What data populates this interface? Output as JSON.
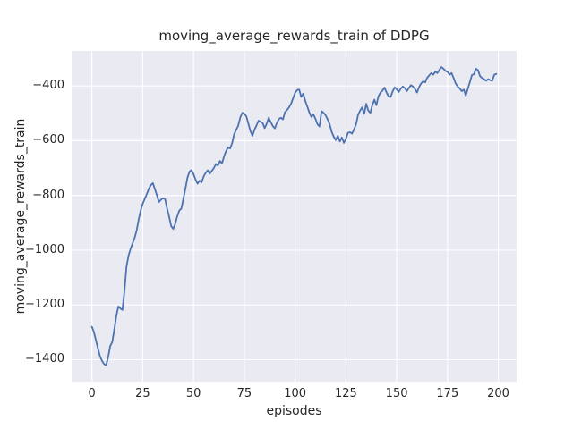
{
  "figure": {
    "title": "moving_average_rewards_train of DDPG",
    "xlabel": "episodes",
    "ylabel": "moving_average_rewards_train"
  },
  "chart_data": {
    "type": "line",
    "title": "moving_average_rewards_train of DDPG",
    "xlabel": "episodes",
    "ylabel": "moving_average_rewards_train",
    "xlim": [
      -10,
      209
    ],
    "ylim": [
      -1480,
      -272
    ],
    "xticks": [
      0,
      25,
      50,
      75,
      100,
      125,
      150,
      175,
      200
    ],
    "xtick_labels": [
      "0",
      "25",
      "50",
      "75",
      "100",
      "125",
      "150",
      "175",
      "200"
    ],
    "yticks": [
      -400,
      -600,
      -800,
      -1000,
      -1200,
      -1400
    ],
    "ytick_labels": [
      "−400",
      "−600",
      "−800",
      "−1000",
      "−1200",
      "−1400"
    ],
    "grid": true,
    "legend": false,
    "styles": {
      "figure_bg": "#ffffff",
      "plot_bg": "#eaeaf2",
      "grid_color": "#ffffff",
      "line_color": "#4c72b0",
      "text_color": "#262626"
    },
    "series": [
      {
        "name": "moving_average_rewards_train",
        "x": [
          0,
          1,
          2,
          3,
          4,
          5,
          6,
          7,
          8,
          9,
          10,
          11,
          12,
          13,
          14,
          15,
          16,
          17,
          18,
          19,
          20,
          21,
          22,
          23,
          24,
          25,
          26,
          27,
          28,
          29,
          30,
          31,
          32,
          33,
          34,
          35,
          36,
          37,
          38,
          39,
          40,
          41,
          42,
          43,
          44,
          45,
          46,
          47,
          48,
          49,
          50,
          51,
          52,
          53,
          54,
          55,
          56,
          57,
          58,
          59,
          60,
          61,
          62,
          63,
          64,
          65,
          66,
          67,
          68,
          69,
          70,
          71,
          72,
          73,
          74,
          75,
          76,
          77,
          78,
          79,
          80,
          81,
          82,
          83,
          84,
          85,
          86,
          87,
          88,
          89,
          90,
          91,
          92,
          93,
          94,
          95,
          96,
          97,
          98,
          99,
          100,
          101,
          102,
          103,
          104,
          105,
          106,
          107,
          108,
          109,
          110,
          111,
          112,
          113,
          114,
          115,
          116,
          117,
          118,
          119,
          120,
          121,
          122,
          123,
          124,
          125,
          126,
          127,
          128,
          129,
          130,
          131,
          132,
          133,
          134,
          135,
          136,
          137,
          138,
          139,
          140,
          141,
          142,
          143,
          144,
          145,
          146,
          147,
          148,
          149,
          150,
          151,
          152,
          153,
          154,
          155,
          156,
          157,
          158,
          159,
          160,
          161,
          162,
          163,
          164,
          165,
          166,
          167,
          168,
          169,
          170,
          171,
          172,
          173,
          174,
          175,
          176,
          177,
          178,
          179,
          180,
          181,
          182,
          183,
          184,
          185,
          186,
          187,
          188,
          189,
          190,
          191,
          192,
          193,
          194,
          195,
          196,
          197,
          198,
          199
        ],
        "y": [
          -1280,
          -1300,
          -1330,
          -1360,
          -1388,
          -1405,
          -1416,
          -1420,
          -1390,
          -1350,
          -1335,
          -1290,
          -1240,
          -1205,
          -1213,
          -1218,
          -1150,
          -1060,
          -1020,
          -995,
          -975,
          -955,
          -928,
          -888,
          -855,
          -830,
          -812,
          -795,
          -775,
          -762,
          -755,
          -777,
          -800,
          -824,
          -815,
          -810,
          -813,
          -848,
          -878,
          -912,
          -922,
          -903,
          -876,
          -855,
          -848,
          -812,
          -775,
          -735,
          -713,
          -707,
          -722,
          -742,
          -757,
          -746,
          -752,
          -730,
          -717,
          -708,
          -721,
          -710,
          -700,
          -685,
          -691,
          -674,
          -683,
          -658,
          -638,
          -625,
          -628,
          -609,
          -576,
          -560,
          -545,
          -515,
          -498,
          -502,
          -511,
          -538,
          -565,
          -582,
          -560,
          -544,
          -527,
          -531,
          -535,
          -554,
          -538,
          -516,
          -532,
          -546,
          -555,
          -536,
          -521,
          -516,
          -522,
          -496,
          -488,
          -478,
          -465,
          -445,
          -425,
          -415,
          -413,
          -440,
          -428,
          -455,
          -475,
          -497,
          -513,
          -504,
          -520,
          -540,
          -548,
          -492,
          -498,
          -507,
          -522,
          -540,
          -568,
          -585,
          -598,
          -582,
          -603,
          -588,
          -608,
          -593,
          -571,
          -569,
          -574,
          -558,
          -540,
          -505,
          -490,
          -478,
          -502,
          -465,
          -490,
          -498,
          -470,
          -450,
          -470,
          -438,
          -424,
          -417,
          -406,
          -424,
          -438,
          -440,
          -420,
          -405,
          -412,
          -422,
          -410,
          -402,
          -408,
          -419,
          -407,
          -397,
          -402,
          -411,
          -424,
          -404,
          -391,
          -383,
          -387,
          -370,
          -361,
          -353,
          -359,
          -348,
          -353,
          -341,
          -331,
          -337,
          -345,
          -348,
          -359,
          -353,
          -371,
          -391,
          -402,
          -409,
          -419,
          -413,
          -435,
          -410,
          -386,
          -360,
          -357,
          -337,
          -342,
          -364,
          -371,
          -375,
          -381,
          -375,
          -379,
          -381,
          -359,
          -356
        ]
      }
    ]
  }
}
